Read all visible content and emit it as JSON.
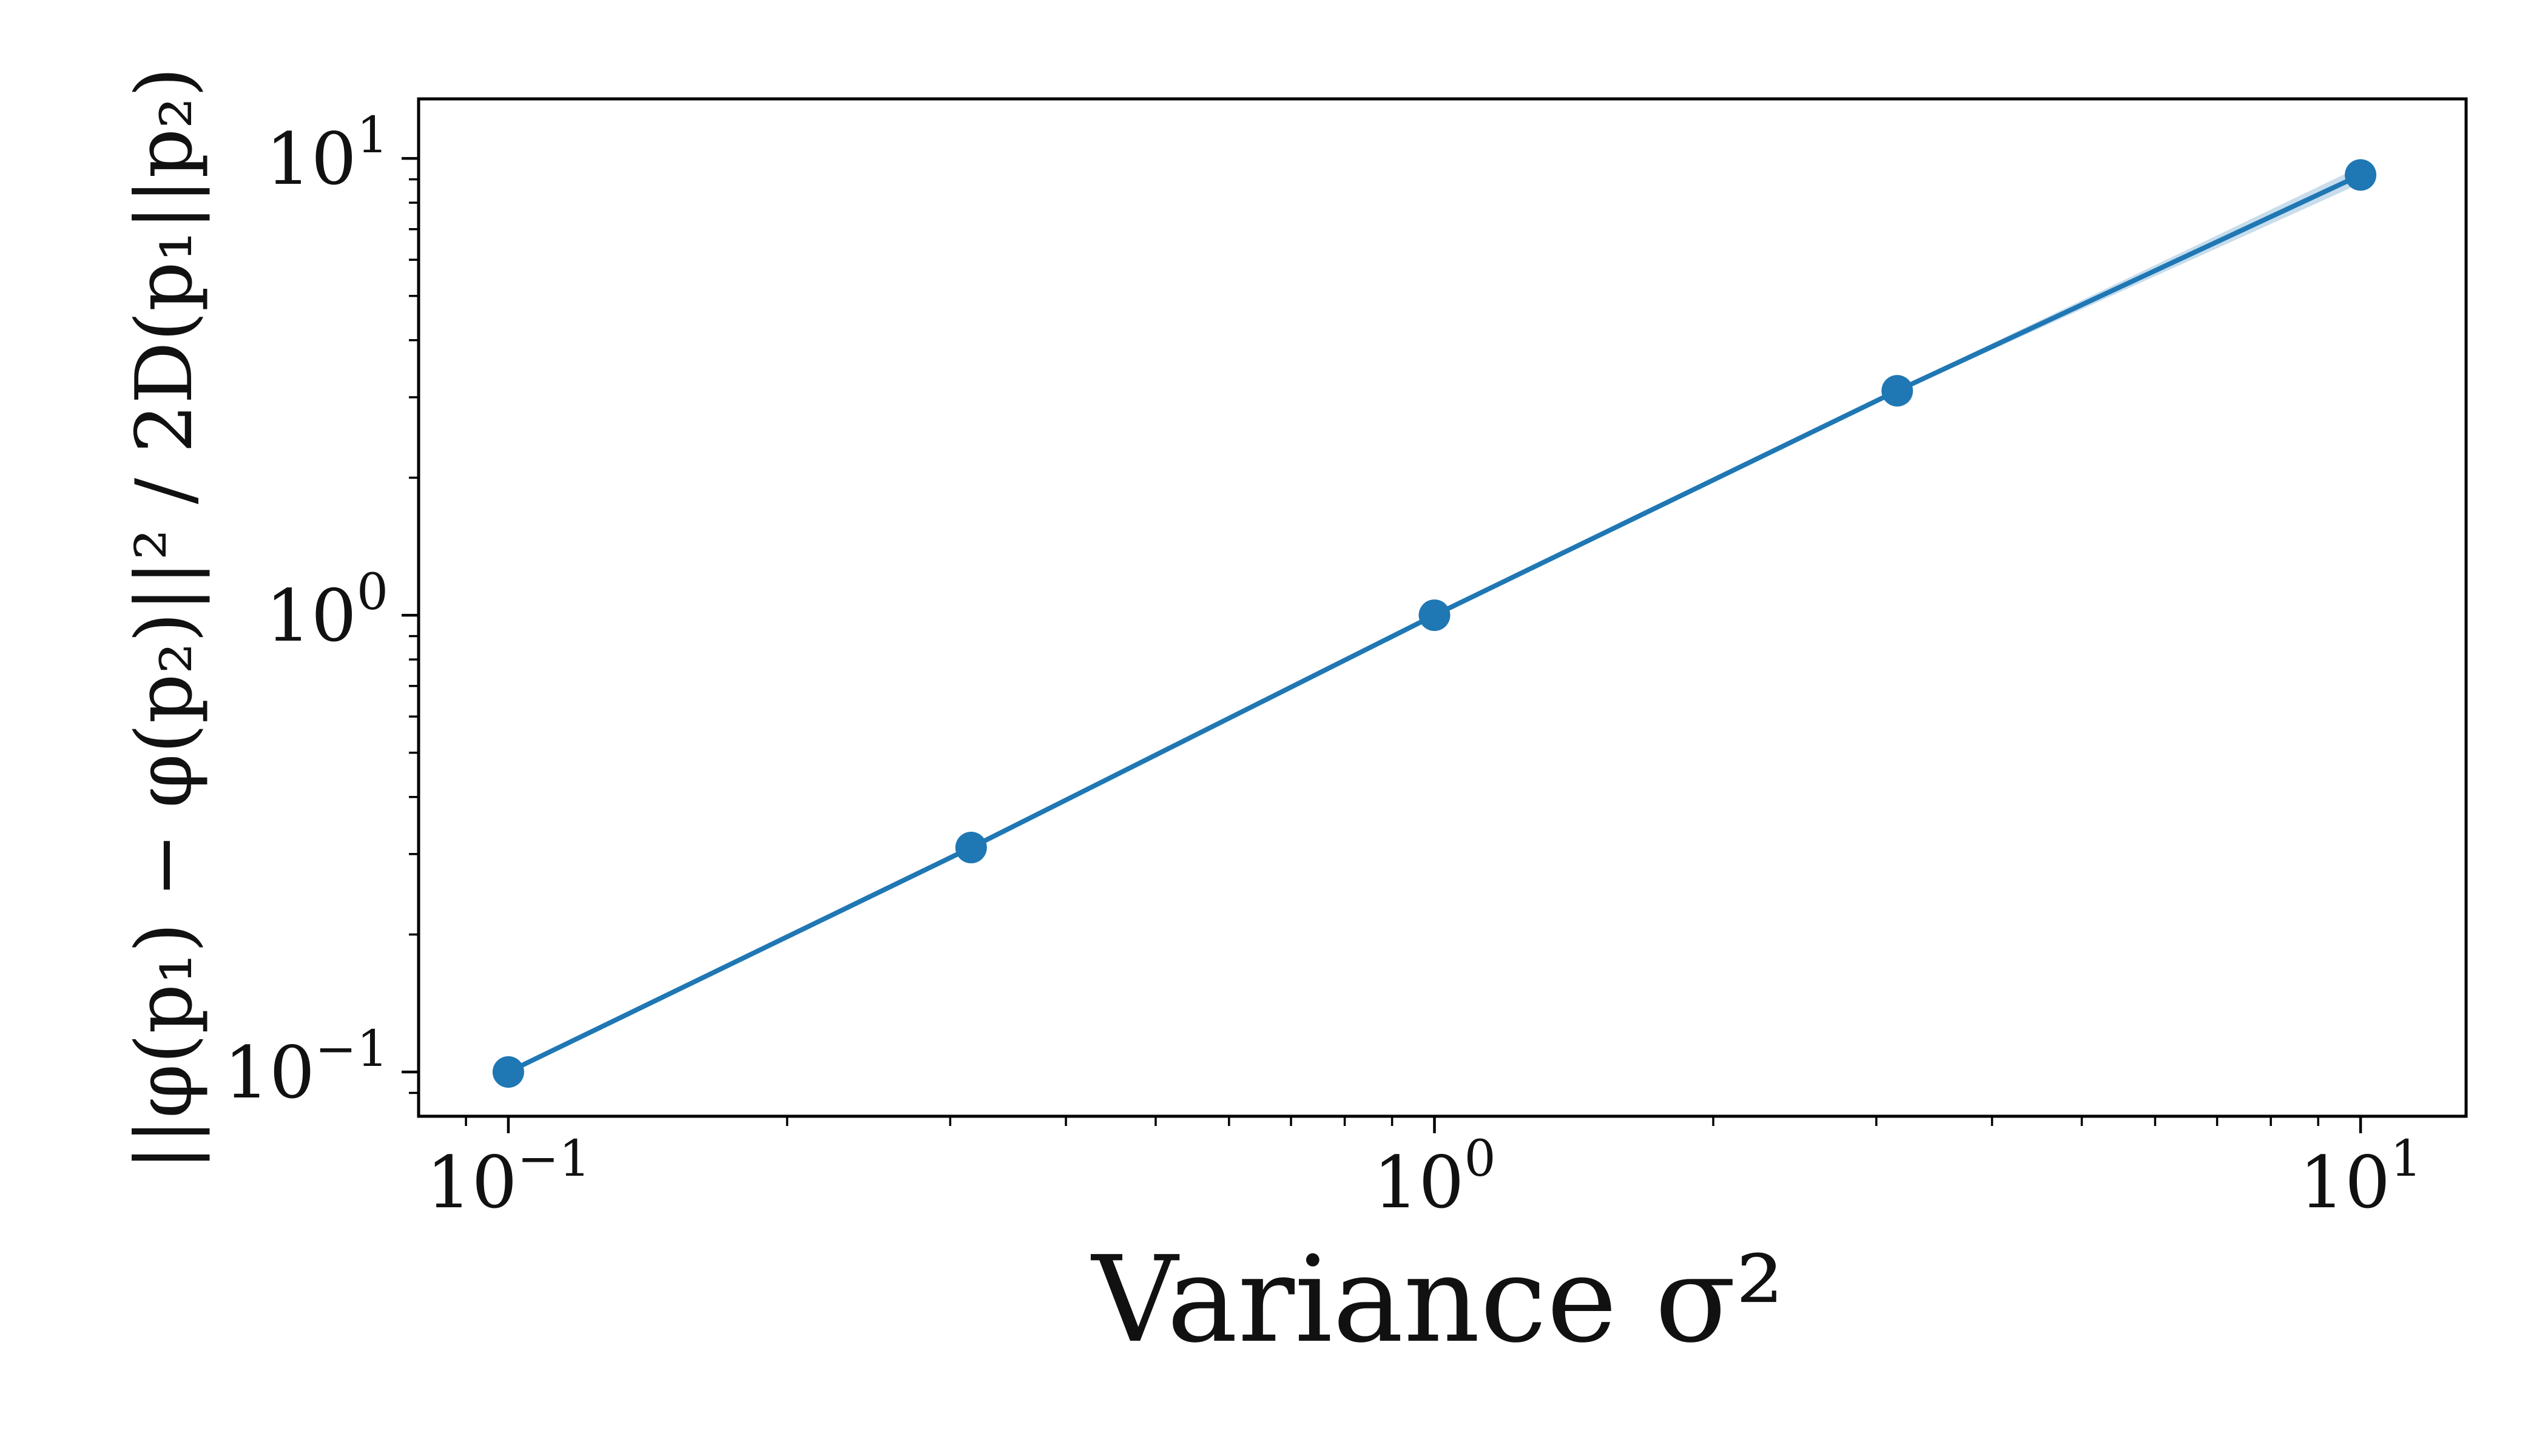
{
  "chart_data": {
    "type": "line",
    "title": "",
    "xlabel": "Variance σ²",
    "ylabel": "||φ(p₁) − φ(p₂)||² / 2D(p₁||p₂)",
    "xscale": "log",
    "yscale": "log",
    "xlim": [
      0.08,
      13
    ],
    "ylim": [
      0.08,
      13.5
    ],
    "grid": false,
    "legend": "none",
    "x_ticks": [
      {
        "base": "10",
        "exp": "−1",
        "value": 0.1
      },
      {
        "base": "10",
        "exp": "0",
        "value": 1
      },
      {
        "base": "10",
        "exp": "1",
        "value": 10
      }
    ],
    "y_ticks": [
      {
        "base": "10",
        "exp": "−1",
        "value": 0.1
      },
      {
        "base": "10",
        "exp": "0",
        "value": 1
      },
      {
        "base": "10",
        "exp": "1",
        "value": 10
      }
    ],
    "series": [
      {
        "color": "#1f77b4",
        "marker": "circle",
        "x": [
          0.1,
          0.316,
          1.0,
          3.16,
          10.0
        ],
        "y": [
          0.1,
          0.31,
          1.0,
          3.1,
          9.2
        ]
      }
    ]
  }
}
